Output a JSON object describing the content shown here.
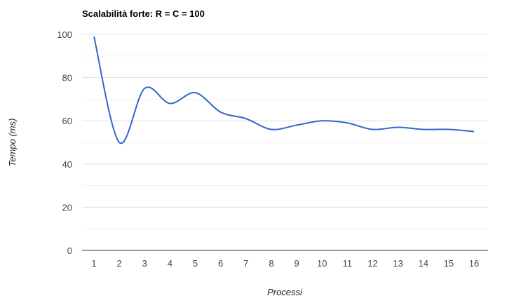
{
  "chart_data": {
    "type": "line",
    "title": "Scalabilità forte: R = C = 100",
    "xlabel": "Processi",
    "ylabel": "Tempo (ms)",
    "categories": [
      "1",
      "2",
      "3",
      "4",
      "5",
      "6",
      "7",
      "8",
      "9",
      "10",
      "11",
      "12",
      "13",
      "14",
      "15",
      "16"
    ],
    "series": [
      {
        "values": [
          99,
          50,
          75,
          68,
          73,
          64,
          61,
          56,
          58,
          60,
          59,
          56,
          57,
          56,
          56,
          55
        ]
      }
    ],
    "ylim": [
      0,
      100
    ],
    "yticks": [
      0,
      20,
      40,
      60,
      80,
      100
    ],
    "grid": true,
    "line_color": "#3366cc",
    "grid_color": "#e0e0e0",
    "axis_color": "#333333"
  }
}
